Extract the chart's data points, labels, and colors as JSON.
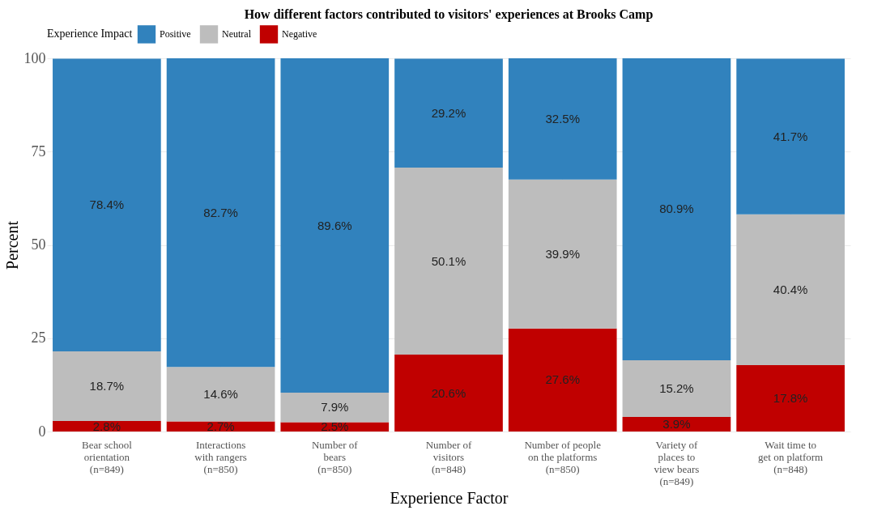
{
  "chart_data": {
    "type": "bar",
    "title": "How different factors contributed to visitors' experiences at Brooks Camp",
    "xlabel": "Experience Factor",
    "ylabel": "Percent",
    "legend_title": "Experience Impact",
    "categories": [
      "Bear school\norientation\n(n=849)",
      "Interactions\nwith rangers\n(n=850)",
      "Number of\nbears\n(n=850)",
      "Number of\nvisitors\n(n=848)",
      "Number of people\non the platforms\n(n=850)",
      "Variety of\nplaces to\nview bears\n(n=849)",
      "Wait time to\nget on platform\n(n=848)"
    ],
    "stacked": true,
    "series": [
      {
        "name": "Negative",
        "color": "#c00000",
        "values": [
          2.8,
          2.7,
          2.5,
          20.6,
          27.6,
          3.9,
          17.8
        ],
        "value_labels": [
          "2.8%",
          "2.7%",
          "2.5%",
          "20.6%",
          "27.6%",
          "3.9%",
          "17.8%"
        ]
      },
      {
        "name": "Neutral",
        "color": "#bdbdbd",
        "values": [
          18.7,
          14.6,
          7.9,
          50.1,
          39.9,
          15.2,
          40.4
        ],
        "value_labels": [
          "18.7%",
          "14.6%",
          "7.9%",
          "50.1%",
          "39.9%",
          "15.2%",
          "40.4%"
        ]
      },
      {
        "name": "Positive",
        "color": "#3182bd",
        "values": [
          78.4,
          82.7,
          89.6,
          29.2,
          32.5,
          80.9,
          41.7
        ],
        "value_labels": [
          "78.4%",
          "82.7%",
          "89.6%",
          "29.2%",
          "32.5%",
          "80.9%",
          "41.7%"
        ]
      }
    ],
    "ylim": [
      0,
      100
    ],
    "yticks": [
      0,
      25,
      50,
      75,
      100
    ],
    "grid": true,
    "legend": "top"
  }
}
